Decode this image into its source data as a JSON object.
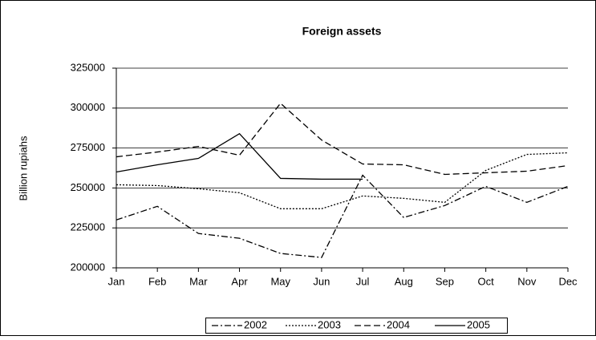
{
  "chart_data": {
    "type": "line",
    "title": "Foreign assets",
    "ylabel": "Billion rupiahs",
    "categories": [
      "Jan",
      "Feb",
      "Mar",
      "Apr",
      "May",
      "Jun",
      "Jul",
      "Aug",
      "Sep",
      "Oct",
      "Nov",
      "Dec"
    ],
    "series": [
      {
        "name": "2002",
        "color": "#000000",
        "style": "dash-dot",
        "values": [
          230000,
          238500,
          221500,
          218500,
          209000,
          206500,
          258000,
          231500,
          239000,
          251000,
          241000,
          251000
        ]
      },
      {
        "name": "2003",
        "color": "#000000",
        "style": "dot",
        "values": [
          252000,
          251500,
          249500,
          247000,
          237000,
          237000,
          245000,
          243500,
          241000,
          261000,
          271000,
          272000
        ]
      },
      {
        "name": "2004",
        "color": "#000000",
        "style": "dash",
        "values": [
          269500,
          272500,
          276000,
          270500,
          303000,
          280000,
          265000,
          264500,
          258500,
          259500,
          260500,
          264000
        ]
      },
      {
        "name": "2005",
        "color": "#000000",
        "style": "solid",
        "values": [
          260000,
          264500,
          268500,
          284000,
          256000,
          255500,
          255500,
          null,
          null,
          null,
          null,
          null
        ]
      }
    ],
    "ylim": [
      200000,
      325000
    ],
    "yticks": [
      200000,
      225000,
      250000,
      275000,
      300000,
      325000
    ],
    "grid": true,
    "legend": "bottom"
  }
}
